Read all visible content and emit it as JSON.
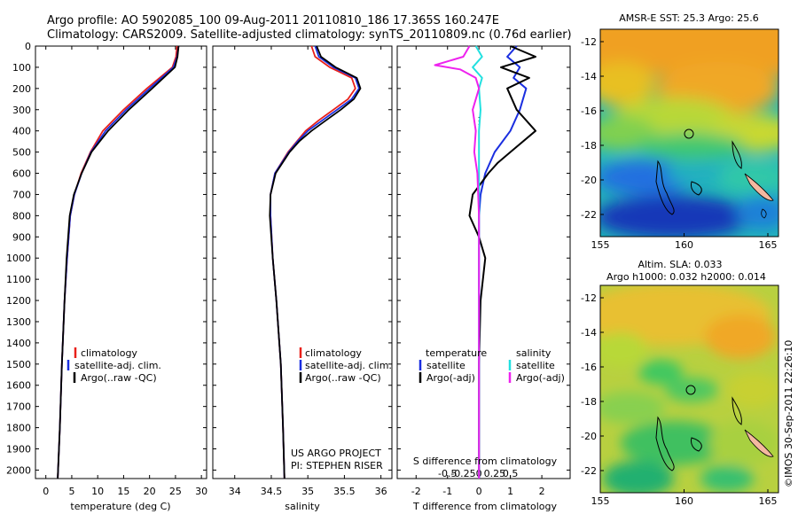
{
  "header": {
    "line1": "Argo profile: AO 5902085_100 09-Aug-2011 20110810_186 17.365S 160.247E",
    "line2": "Climatology: CARS2009. Satellite-adjusted climatology: synTS_20110809.nc (0.76d earlier)"
  },
  "colors": {
    "climatology": "#e8201a",
    "satellite": "#1a2ee0",
    "argo": "#000000",
    "sal_sat": "#22e0e0",
    "sal_argo": "#ee22ee"
  },
  "depth_axis": {
    "ticks": [
      0,
      100,
      200,
      300,
      400,
      500,
      600,
      700,
      800,
      900,
      1000,
      1100,
      1200,
      1300,
      1400,
      1500,
      1600,
      1700,
      1800,
      1900,
      2000
    ],
    "range": [
      0,
      2040
    ]
  },
  "chart_data": [
    {
      "type": "line",
      "xlabel": "temperature (deg C)",
      "xlim": [
        -2,
        31
      ],
      "xticks": [
        0,
        5,
        10,
        15,
        20,
        25,
        30
      ],
      "ylim": [
        2040,
        0
      ],
      "legend": [
        "climatology",
        "satellite-adj. clim.",
        "Argo(..raw -QC)"
      ],
      "series": [
        {
          "name": "climatology",
          "depth": [
            0,
            50,
            100,
            200,
            300,
            400,
            500,
            600,
            700,
            800,
            1000,
            1200,
            1500,
            1800,
            2040
          ],
          "values": [
            25.3,
            25.1,
            24.4,
            19.5,
            15.0,
            11.0,
            8.6,
            6.8,
            5.5,
            4.7,
            4.1,
            3.6,
            3.1,
            2.7,
            2.3
          ]
        },
        {
          "name": "satellite-adj. clim.",
          "depth": [
            0,
            50,
            100,
            200,
            300,
            400,
            500,
            600,
            700,
            800,
            1000,
            1200,
            1500,
            1800,
            2040
          ],
          "values": [
            25.6,
            25.3,
            24.6,
            20.0,
            15.5,
            11.5,
            8.7,
            6.9,
            5.5,
            4.7,
            4.1,
            3.6,
            3.1,
            2.7,
            2.3
          ]
        },
        {
          "name": "Argo(..raw -QC)",
          "depth": [
            0,
            50,
            100,
            200,
            300,
            400,
            500,
            600,
            700,
            800,
            1000,
            1200,
            1500,
            1800,
            2040
          ],
          "values": [
            25.6,
            25.4,
            24.9,
            20.5,
            16.0,
            12.0,
            8.8,
            6.9,
            5.4,
            4.6,
            4.0,
            3.6,
            3.1,
            2.7,
            2.3
          ]
        }
      ]
    },
    {
      "type": "line",
      "xlabel": "salinity",
      "xlim": [
        33.7,
        36.15
      ],
      "xticks": [
        34,
        34.5,
        35,
        35.5,
        36
      ],
      "ylim": [
        2040,
        0
      ],
      "legend": [
        "climatology",
        "satellite-adj. clim.",
        "Argo(..raw -QC)"
      ],
      "series": [
        {
          "name": "climatology",
          "depth": [
            0,
            50,
            100,
            150,
            200,
            250,
            300,
            350,
            400,
            450,
            500,
            600,
            700,
            800,
            1000,
            1200,
            1500,
            1800,
            2040
          ],
          "values": [
            35.05,
            35.1,
            35.3,
            35.6,
            35.65,
            35.55,
            35.35,
            35.15,
            34.97,
            34.85,
            34.73,
            34.55,
            34.49,
            34.49,
            34.52,
            34.57,
            34.63,
            34.66,
            34.68
          ]
        },
        {
          "name": "satellite-adj. clim.",
          "depth": [
            0,
            50,
            100,
            150,
            200,
            250,
            300,
            350,
            400,
            450,
            500,
            600,
            700,
            800,
            1000,
            1200,
            1500,
            1800,
            2040
          ],
          "values": [
            35.1,
            35.15,
            35.35,
            35.65,
            35.7,
            35.6,
            35.4,
            35.2,
            35.0,
            34.86,
            34.74,
            34.55,
            34.49,
            34.49,
            34.52,
            34.57,
            34.63,
            34.66,
            34.68
          ]
        },
        {
          "name": "Argo(..raw -QC)",
          "depth": [
            0,
            50,
            100,
            150,
            200,
            250,
            300,
            350,
            400,
            450,
            500,
            600,
            700,
            800,
            1000,
            1200,
            1500,
            1800,
            2040
          ],
          "values": [
            35.12,
            35.18,
            35.38,
            35.67,
            35.72,
            35.63,
            35.45,
            35.25,
            35.05,
            34.88,
            34.75,
            34.56,
            34.49,
            34.48,
            34.52,
            34.57,
            34.63,
            34.66,
            34.68
          ]
        }
      ]
    },
    {
      "type": "line",
      "xlabel_top": "S difference from climatology",
      "xticklabels_top": [
        "-0.5",
        "-0.25",
        "0",
        "0.25",
        "0.5"
      ],
      "xlabel": "T difference from climatology",
      "xlim": [
        -2.6,
        2.9
      ],
      "xticks": [
        -2,
        -1,
        0,
        1,
        2
      ],
      "ylim": [
        2040,
        0
      ],
      "legend": {
        "temperature_header": "temperature",
        "salinity_header": "salinity",
        "entries": [
          "satellite",
          "Argo(-adj)",
          "satellite",
          "Argo(-adj)"
        ]
      },
      "series": [
        {
          "name": "satellite",
          "depth": [
            0,
            50,
            100,
            150,
            200,
            300,
            400,
            500,
            600,
            700,
            800,
            900,
            1000,
            1200,
            1500,
            2040
          ],
          "values": [
            1.2,
            0.9,
            1.3,
            1.1,
            1.5,
            1.3,
            1.0,
            0.5,
            0.2,
            0.05,
            0.0,
            0.0,
            0.0,
            0.0,
            0.0,
            0.0
          ]
        },
        {
          "name": "Argo(-adj)",
          "depth": [
            0,
            50,
            100,
            150,
            200,
            300,
            400,
            500,
            550,
            600,
            700,
            800,
            900,
            1000,
            1200,
            1500,
            2040
          ],
          "values": [
            1.0,
            1.8,
            0.7,
            1.6,
            0.9,
            1.2,
            1.8,
            1.0,
            0.6,
            0.3,
            -0.2,
            -0.3,
            0.0,
            0.2,
            0.05,
            0.0,
            0.0
          ]
        },
        {
          "name": "satellite (salinity)",
          "depth": [
            0,
            50,
            100,
            150,
            200,
            300,
            400,
            600,
            800,
            1000,
            1500,
            2040
          ],
          "values": [
            -0.1,
            0.1,
            -0.2,
            0.1,
            0.0,
            0.05,
            0.0,
            0.0,
            0.0,
            0.0,
            0.0,
            0.0
          ]
        },
        {
          "name": "Argo(-adj) (salinity)",
          "depth": [
            0,
            50,
            90,
            110,
            150,
            200,
            300,
            400,
            500,
            600,
            800,
            1000,
            1500,
            2040
          ],
          "values": [
            -0.3,
            -0.5,
            -1.4,
            -0.6,
            -0.1,
            0.0,
            -0.2,
            -0.1,
            -0.15,
            -0.05,
            0.0,
            0.0,
            0.0,
            0.0
          ]
        }
      ]
    }
  ],
  "map1": {
    "title": "AMSR-E SST: 25.3 Argo: 25.6",
    "xticks": [
      "155",
      "160",
      "165"
    ],
    "yticks": [
      "-12",
      "-14",
      "-16",
      "-18",
      "-20",
      "-22"
    ]
  },
  "map2": {
    "title1": "Altim. SLA: 0.033",
    "title2": "Argo h1000: 0.032 h2000: 0.014",
    "xticks": [
      "155",
      "160",
      "165"
    ],
    "yticks": [
      "-12",
      "-14",
      "-16",
      "-18",
      "-20",
      "-22"
    ]
  },
  "footer": {
    "project": "US ARGO PROJECT",
    "pi": "PI: STEPHEN RISER",
    "imos": "©IMOS 30-Sep-2011 22:26:10"
  }
}
